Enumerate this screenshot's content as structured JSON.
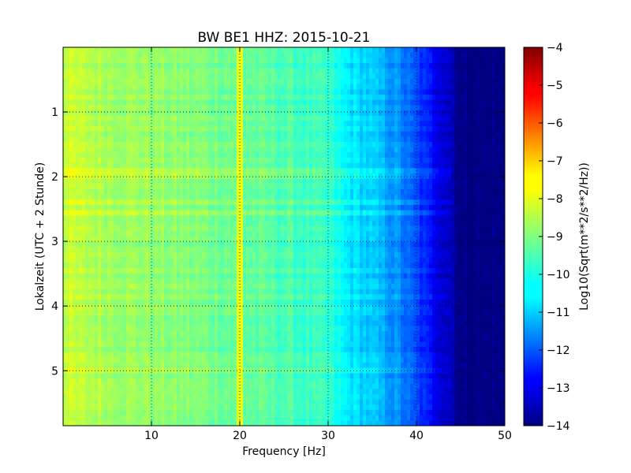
{
  "chart_data": {
    "type": "heatmap",
    "title": "BW BE1 HHZ: 2015-10-21",
    "xlabel": "Frequency [Hz]",
    "ylabel": "Lokalzeit (UTC + 2 Stunde)",
    "xlim": [
      0,
      50
    ],
    "ylim": [
      0,
      5.85
    ],
    "y_inverted": true,
    "x_ticks": [
      10,
      20,
      30,
      40,
      50
    ],
    "x_tick_labels": [
      "10",
      "20",
      "30",
      "40",
      "50"
    ],
    "y_ticks": [
      1,
      2,
      3,
      4,
      5
    ],
    "y_tick_labels": [
      "1",
      "2",
      "3",
      "4",
      "5"
    ],
    "grid": true,
    "colormap": "jet",
    "colorbar": {
      "label": "Log10(Sqrt(m**2/s**2/Hz))",
      "range": [
        -14,
        -4
      ],
      "ticks": [
        -4,
        -5,
        -6,
        -7,
        -8,
        -9,
        -10,
        -11,
        -12,
        -13,
        -14
      ],
      "tick_labels": [
        "−4",
        "−5",
        "−6",
        "−7",
        "−8",
        "−9",
        "−10",
        "−11",
        "−12",
        "−13",
        "−14"
      ]
    },
    "spectrum_profile": {
      "frequency_hz": [
        0,
        5,
        10,
        15,
        20,
        25,
        30,
        32,
        35,
        38,
        40,
        42,
        44,
        45,
        50
      ],
      "value": [
        -8.3,
        -8.6,
        -8.8,
        -9.0,
        -9.2,
        -9.5,
        -9.8,
        -10.4,
        -10.8,
        -11.4,
        -12.1,
        -12.8,
        -13.4,
        -14.0,
        -14.0
      ]
    },
    "features": {
      "line_frequency_hz": 20,
      "line_value": -8.0
    }
  }
}
